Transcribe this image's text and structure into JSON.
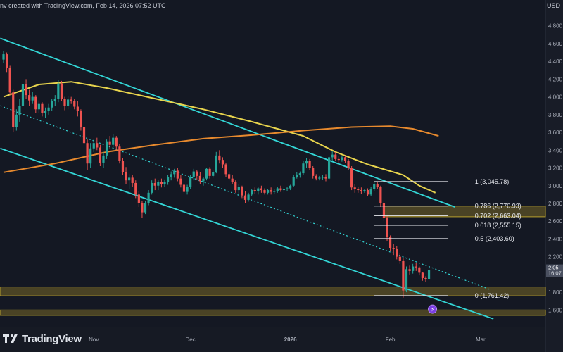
{
  "header": {
    "text": "nv created with TradingView.com, Feb 14, 2026 07:52 UTC",
    "symbol_label": "USD"
  },
  "brand": {
    "name": "TradingView",
    "logo_icon": "tradingview-logo-icon"
  },
  "price_label": {
    "value": "2,05",
    "timer": "16:07"
  },
  "colors": {
    "background": "#141823",
    "up": "#26a69a",
    "down": "#ef5350",
    "channel": "#33d6d6",
    "ma_yellow": "#e8d44d",
    "ma_orange": "#e88a2e",
    "zone": "#b8a02e"
  },
  "chart_data": {
    "type": "candlestick",
    "y_axis": {
      "side": "right",
      "range": [
        1460,
        4980
      ],
      "ticks": [
        "4,800",
        "4,600",
        "4,400",
        "4,200",
        "4,000",
        "3,800",
        "3,600",
        "3,400",
        "3,200",
        "3,000",
        "2,800",
        "2,600",
        "2,400",
        "2,200",
        "2,000",
        "1,800",
        "1,600"
      ]
    },
    "x_axis": {
      "ticks": [
        {
          "label": "Nov",
          "date": "2025-11-01"
        },
        {
          "label": "Dec",
          "date": "2025-12-01"
        },
        {
          "label": "2026",
          "date": "2026-01-01"
        },
        {
          "label": "Feb",
          "date": "2026-02-01"
        },
        {
          "label": "Mar",
          "date": "2026-03-01"
        }
      ]
    },
    "candles": [
      [
        "2025-10-04",
        4420,
        4520,
        4380,
        4480
      ],
      [
        "2025-10-05",
        4480,
        4500,
        4280,
        4330
      ],
      [
        "2025-10-06",
        4330,
        4350,
        4020,
        4050
      ],
      [
        "2025-10-07",
        4050,
        4080,
        3600,
        3660
      ],
      [
        "2025-10-08",
        3660,
        3860,
        3620,
        3800
      ],
      [
        "2025-10-09",
        3800,
        3980,
        3720,
        3900
      ],
      [
        "2025-10-10",
        3900,
        4180,
        3880,
        4140
      ],
      [
        "2025-10-11",
        4140,
        4200,
        3980,
        4020
      ],
      [
        "2025-10-12",
        4020,
        4080,
        3900,
        3960
      ],
      [
        "2025-10-13",
        3960,
        4060,
        3920,
        4000
      ],
      [
        "2025-10-14",
        4000,
        4020,
        3820,
        3860
      ],
      [
        "2025-10-15",
        3860,
        3960,
        3820,
        3920
      ],
      [
        "2025-10-16",
        3920,
        3940,
        3780,
        3820
      ],
      [
        "2025-10-17",
        3820,
        3880,
        3760,
        3840
      ],
      [
        "2025-10-18",
        3840,
        3920,
        3800,
        3880
      ],
      [
        "2025-10-19",
        3880,
        3980,
        3840,
        3950
      ],
      [
        "2025-10-20",
        3950,
        4020,
        3900,
        3980
      ],
      [
        "2025-10-21",
        3980,
        4190,
        3940,
        4150
      ],
      [
        "2025-10-22",
        4150,
        4180,
        3950,
        3980
      ],
      [
        "2025-10-23",
        3980,
        4000,
        3850,
        3900
      ],
      [
        "2025-10-24",
        3900,
        4010,
        3860,
        3970
      ],
      [
        "2025-10-25",
        3970,
        4000,
        3920,
        3950
      ],
      [
        "2025-10-26",
        3950,
        3980,
        3860,
        3890
      ],
      [
        "2025-10-27",
        3890,
        3950,
        3780,
        3840
      ],
      [
        "2025-10-28",
        3840,
        3860,
        3620,
        3660
      ],
      [
        "2025-10-29",
        3660,
        3700,
        3440,
        3480
      ],
      [
        "2025-10-30",
        3480,
        3520,
        3180,
        3250
      ],
      [
        "2025-10-31",
        3250,
        3480,
        3200,
        3420
      ],
      [
        "2025-11-01",
        3420,
        3520,
        3380,
        3480
      ],
      [
        "2025-11-02",
        3480,
        3540,
        3400,
        3430
      ],
      [
        "2025-11-03",
        3430,
        3460,
        3220,
        3260
      ],
      [
        "2025-11-04",
        3260,
        3380,
        3200,
        3340
      ],
      [
        "2025-11-05",
        3340,
        3520,
        3300,
        3500
      ],
      [
        "2025-11-06",
        3500,
        3560,
        3420,
        3460
      ],
      [
        "2025-11-07",
        3460,
        3580,
        3430,
        3540
      ],
      [
        "2025-11-08",
        3540,
        3560,
        3400,
        3440
      ],
      [
        "2025-11-09",
        3440,
        3470,
        3250,
        3280
      ],
      [
        "2025-11-10",
        3280,
        3310,
        3120,
        3150
      ],
      [
        "2025-11-11",
        3150,
        3210,
        3020,
        3060
      ],
      [
        "2025-11-12",
        3060,
        3130,
        2960,
        3090
      ],
      [
        "2025-11-13",
        3090,
        3120,
        2990,
        3030
      ],
      [
        "2025-11-14",
        3030,
        3060,
        2860,
        2900
      ],
      [
        "2025-11-15",
        2900,
        2940,
        2760,
        2800
      ],
      [
        "2025-11-16",
        2800,
        2830,
        2640,
        2700
      ],
      [
        "2025-11-17",
        2700,
        2830,
        2680,
        2800
      ],
      [
        "2025-11-18",
        2800,
        2950,
        2780,
        2920
      ],
      [
        "2025-11-19",
        2920,
        3060,
        2900,
        3030
      ],
      [
        "2025-11-20",
        3030,
        3080,
        2950,
        3000
      ],
      [
        "2025-11-21",
        3000,
        3060,
        2950,
        3040
      ],
      [
        "2025-11-22",
        3040,
        3080,
        2980,
        3020
      ],
      [
        "2025-11-23",
        3020,
        3070,
        2990,
        3040
      ],
      [
        "2025-11-24",
        3040,
        3120,
        3010,
        3100
      ],
      [
        "2025-11-25",
        3100,
        3160,
        3060,
        3130
      ],
      [
        "2025-11-26",
        3130,
        3190,
        3090,
        3170
      ],
      [
        "2025-11-27",
        3170,
        3200,
        3050,
        3080
      ],
      [
        "2025-11-28",
        3080,
        3120,
        2980,
        3010
      ],
      [
        "2025-11-29",
        3010,
        3030,
        2900,
        2930
      ],
      [
        "2025-11-30",
        2930,
        3010,
        2900,
        2990
      ],
      [
        "2025-12-01",
        2990,
        3120,
        2960,
        3100
      ],
      [
        "2025-12-02",
        3100,
        3190,
        3060,
        3160
      ],
      [
        "2025-12-03",
        3160,
        3180,
        3070,
        3110
      ],
      [
        "2025-12-04",
        3110,
        3150,
        3020,
        3050
      ],
      [
        "2025-12-05",
        3050,
        3100,
        3000,
        3080
      ],
      [
        "2025-12-06",
        3080,
        3200,
        3060,
        3190
      ],
      [
        "2025-12-07",
        3190,
        3210,
        3080,
        3110
      ],
      [
        "2025-12-08",
        3110,
        3170,
        3090,
        3150
      ],
      [
        "2025-12-09",
        3150,
        3380,
        3140,
        3340
      ],
      [
        "2025-12-10",
        3340,
        3400,
        3250,
        3290
      ],
      [
        "2025-12-11",
        3290,
        3320,
        3200,
        3240
      ],
      [
        "2025-12-12",
        3240,
        3260,
        3100,
        3130
      ],
      [
        "2025-12-13",
        3130,
        3160,
        3060,
        3080
      ],
      [
        "2025-12-14",
        3080,
        3120,
        3020,
        3040
      ],
      [
        "2025-12-15",
        3040,
        3060,
        2920,
        2950
      ],
      [
        "2025-12-16",
        2950,
        3020,
        2900,
        2990
      ],
      [
        "2025-12-17",
        2990,
        3000,
        2860,
        2890
      ],
      [
        "2025-12-18",
        2890,
        2940,
        2800,
        2840
      ],
      [
        "2025-12-19",
        2840,
        2920,
        2820,
        2900
      ],
      [
        "2025-12-20",
        2900,
        2960,
        2880,
        2950
      ],
      [
        "2025-12-21",
        2950,
        2980,
        2910,
        2940
      ],
      [
        "2025-12-22",
        2940,
        2990,
        2900,
        2970
      ],
      [
        "2025-12-23",
        2970,
        3000,
        2920,
        2950
      ],
      [
        "2025-12-24",
        2950,
        2970,
        2900,
        2920
      ],
      [
        "2025-12-25",
        2920,
        2960,
        2900,
        2950
      ],
      [
        "2025-12-26",
        2950,
        2980,
        2900,
        2930
      ],
      [
        "2025-12-27",
        2930,
        2960,
        2910,
        2940
      ],
      [
        "2025-12-28",
        2940,
        2990,
        2920,
        2970
      ],
      [
        "2025-12-29",
        2970,
        3000,
        2930,
        2950
      ],
      [
        "2025-12-30",
        2950,
        2990,
        2920,
        2960
      ],
      [
        "2025-12-31",
        2960,
        2990,
        2940,
        2970
      ],
      [
        "2026-01-01",
        2970,
        3010,
        2950,
        3000
      ],
      [
        "2026-01-02",
        3000,
        3120,
        2990,
        3100
      ],
      [
        "2026-01-03",
        3100,
        3150,
        3080,
        3120
      ],
      [
        "2026-01-04",
        3120,
        3160,
        3090,
        3140
      ],
      [
        "2026-01-05",
        3140,
        3280,
        3120,
        3250
      ],
      [
        "2026-01-06",
        3250,
        3310,
        3200,
        3280
      ],
      [
        "2026-01-07",
        3280,
        3300,
        3180,
        3200
      ],
      [
        "2026-01-08",
        3200,
        3220,
        3080,
        3110
      ],
      [
        "2026-01-09",
        3110,
        3130,
        3060,
        3080
      ],
      [
        "2026-01-10",
        3080,
        3110,
        3060,
        3090
      ],
      [
        "2026-01-11",
        3090,
        3120,
        3070,
        3100
      ],
      [
        "2026-01-12",
        3100,
        3130,
        3050,
        3080
      ],
      [
        "2026-01-13",
        3080,
        3340,
        3070,
        3320
      ],
      [
        "2026-01-14",
        3320,
        3390,
        3280,
        3350
      ],
      [
        "2026-01-15",
        3350,
        3380,
        3280,
        3300
      ],
      [
        "2026-01-16",
        3300,
        3330,
        3250,
        3290
      ],
      [
        "2026-01-17",
        3290,
        3340,
        3270,
        3320
      ],
      [
        "2026-01-18",
        3320,
        3340,
        3260,
        3280
      ],
      [
        "2026-01-19",
        3280,
        3300,
        3180,
        3200
      ],
      [
        "2026-01-20",
        3200,
        3220,
        2950,
        2980
      ],
      [
        "2026-01-21",
        2980,
        3020,
        2920,
        2960
      ],
      [
        "2026-01-22",
        2960,
        2990,
        2920,
        2950
      ],
      [
        "2026-01-23",
        2950,
        2980,
        2910,
        2940
      ],
      [
        "2026-01-24",
        2940,
        2960,
        2920,
        2950
      ],
      [
        "2026-01-25",
        2950,
        2970,
        2880,
        2900
      ],
      [
        "2026-01-26",
        2900,
        2990,
        2880,
        2960
      ],
      [
        "2026-01-27",
        2960,
        3050,
        2940,
        3020
      ],
      [
        "2026-01-28",
        3020,
        3040,
        2960,
        2990
      ],
      [
        "2026-01-29",
        2990,
        3000,
        2760,
        2800
      ],
      [
        "2026-01-30",
        2800,
        2820,
        2600,
        2640
      ],
      [
        "2026-01-31",
        2640,
        2660,
        2380,
        2420
      ],
      [
        "2026-02-01",
        2420,
        2440,
        2260,
        2300
      ],
      [
        "2026-02-02",
        2300,
        2340,
        2220,
        2290
      ],
      [
        "2026-02-03",
        2290,
        2320,
        2170,
        2200
      ],
      [
        "2026-02-04",
        2200,
        2240,
        2120,
        2150
      ],
      [
        "2026-02-05",
        2150,
        2180,
        1740,
        1820
      ],
      [
        "2026-02-06",
        1820,
        2090,
        1800,
        2060
      ],
      [
        "2026-02-07",
        2060,
        2100,
        2000,
        2040
      ],
      [
        "2026-02-08",
        2040,
        2120,
        2010,
        2090
      ],
      [
        "2026-02-09",
        2090,
        2130,
        2040,
        2080
      ],
      [
        "2026-02-10",
        2080,
        2090,
        1990,
        2020
      ],
      [
        "2026-02-11",
        2020,
        2030,
        1930,
        1960
      ],
      [
        "2026-02-12",
        1960,
        1980,
        1920,
        1950
      ],
      [
        "2026-02-13",
        1950,
        2070,
        1940,
        2050
      ]
    ],
    "moving_averages": [
      {
        "color": "#e8d44d",
        "points": [
          [
            "2025-10-04",
            4000
          ],
          [
            "2025-10-15",
            4140
          ],
          [
            "2025-10-25",
            4170
          ],
          [
            "2025-11-05",
            4100
          ],
          [
            "2025-11-20",
            3980
          ],
          [
            "2025-12-05",
            3860
          ],
          [
            "2025-12-20",
            3720
          ],
          [
            "2026-01-05",
            3560
          ],
          [
            "2026-01-15",
            3380
          ],
          [
            "2026-01-25",
            3240
          ],
          [
            "2026-02-05",
            3120
          ],
          [
            "2026-02-10",
            3000
          ],
          [
            "2026-02-15",
            2920
          ]
        ]
      },
      {
        "color": "#e88a2e",
        "points": [
          [
            "2025-10-04",
            3150
          ],
          [
            "2025-10-20",
            3250
          ],
          [
            "2025-11-05",
            3380
          ],
          [
            "2025-11-20",
            3460
          ],
          [
            "2025-12-05",
            3530
          ],
          [
            "2025-12-20",
            3570
          ],
          [
            "2026-01-05",
            3620
          ],
          [
            "2026-01-20",
            3660
          ],
          [
            "2026-02-01",
            3670
          ],
          [
            "2026-02-08",
            3640
          ],
          [
            "2026-02-16",
            3560
          ]
        ]
      }
    ],
    "channel_lines": [
      {
        "style": "solid",
        "color": "#33d6d6",
        "from": [
          "2025-10-03",
          4660
        ],
        "to": [
          "2026-02-21",
          2760
        ]
      },
      {
        "style": "dotted",
        "color": "#33d6d6",
        "from": [
          "2025-10-03",
          3900
        ],
        "to": [
          "2026-03-04",
          1830
        ]
      },
      {
        "style": "solid",
        "color": "#33d6d6",
        "from": [
          "2025-10-03",
          3420
        ],
        "to": [
          "2026-03-05",
          1500
        ]
      }
    ],
    "fibonacci": {
      "from_date": "2026-01-27",
      "to_date": "2026-02-19",
      "levels": [
        {
          "ratio": "1",
          "value": 3045.78,
          "label": "1 (3,045.78)"
        },
        {
          "ratio": "0.786",
          "value": 2770.93,
          "label": "0.786 (2,770.93)"
        },
        {
          "ratio": "0.702",
          "value": 2663.04,
          "label": "0.702 (2,663.04)"
        },
        {
          "ratio": "0.618",
          "value": 2555.15,
          "label": "0.618 (2,555.15)"
        },
        {
          "ratio": "0.5",
          "value": 2403.6,
          "label": "0.5 (2,403.60)"
        },
        {
          "ratio": "0",
          "value": 1761.42,
          "label": "0 (1,761.42)"
        }
      ]
    },
    "zones": [
      {
        "low": 2650,
        "high": 2770,
        "from": "2026-01-30"
      },
      {
        "low": 1760,
        "high": 1860,
        "from": "2025-10-03"
      },
      {
        "low": 1540,
        "high": 1600,
        "from": "2025-10-03"
      }
    ],
    "current_price": 2050,
    "event_marker": {
      "date": "2026-02-13",
      "value": 1610,
      "icon": "lightning-event-icon"
    }
  }
}
